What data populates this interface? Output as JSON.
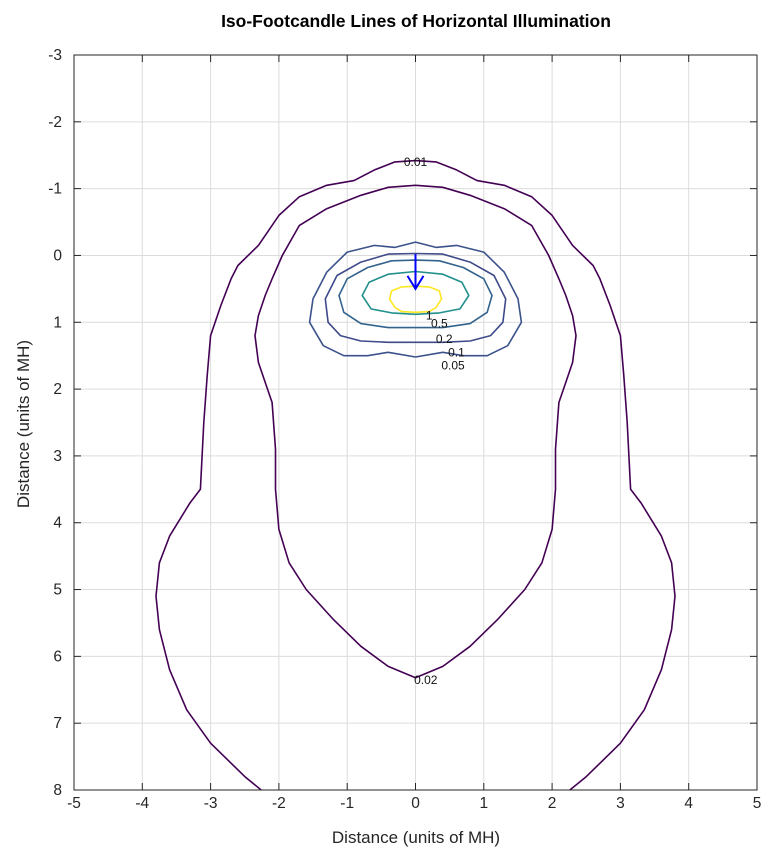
{
  "chart_data": {
    "type": "contour",
    "title": "Iso-Footcandle Lines of Horizontal Illumination",
    "xlabel": "Distance (units of MH)",
    "ylabel": "Distance (units of MH)",
    "xlim": [
      -5,
      5
    ],
    "ylim": [
      8,
      -3
    ],
    "y_axis_reversed": true,
    "grid": true,
    "xticks": [
      "-5",
      "-4",
      "-3",
      "-2",
      "-1",
      "0",
      "1",
      "2",
      "3",
      "4",
      "5"
    ],
    "yticks": [
      "-3",
      "-2",
      "-1",
      "0",
      "1",
      "2",
      "3",
      "4",
      "5",
      "6",
      "7",
      "8"
    ],
    "levels": [
      {
        "value": 0.01,
        "label": "0.01",
        "color": "#440154",
        "label_at": [
          0,
          -1.4
        ],
        "path": [
          [
            0,
            -1.42
          ],
          [
            0.3,
            -1.4
          ],
          [
            0.6,
            -1.28
          ],
          [
            0.9,
            -1.12
          ],
          [
            1.3,
            -1.05
          ],
          [
            1.7,
            -0.88
          ],
          [
            2.0,
            -0.6
          ],
          [
            2.3,
            -0.15
          ],
          [
            2.6,
            0.15
          ],
          [
            2.7,
            0.35
          ],
          [
            2.85,
            0.75
          ],
          [
            3.0,
            1.2
          ],
          [
            3.05,
            1.8
          ],
          [
            3.1,
            2.5
          ],
          [
            3.15,
            3.5
          ],
          [
            3.3,
            3.7
          ],
          [
            3.6,
            4.2
          ],
          [
            3.75,
            4.6
          ],
          [
            3.8,
            5.1
          ],
          [
            3.75,
            5.6
          ],
          [
            3.6,
            6.2
          ],
          [
            3.35,
            6.8
          ],
          [
            3.0,
            7.3
          ],
          [
            2.5,
            7.8
          ],
          [
            2.2,
            8.05
          ],
          [
            2.1,
            8.3
          ]
        ],
        "mirror": true
      },
      {
        "value": 0.02,
        "label": "0.02",
        "color": "#440154",
        "label_at": [
          0.15,
          6.35
        ],
        "path": [
          [
            0,
            6.32
          ],
          [
            0.4,
            6.15
          ],
          [
            0.8,
            5.85
          ],
          [
            1.2,
            5.45
          ],
          [
            1.6,
            5.0
          ],
          [
            1.85,
            4.6
          ],
          [
            2.0,
            4.1
          ],
          [
            2.05,
            3.5
          ],
          [
            2.05,
            2.9
          ],
          [
            2.1,
            2.2
          ],
          [
            2.2,
            1.9
          ],
          [
            2.3,
            1.6
          ],
          [
            2.35,
            1.2
          ],
          [
            2.3,
            0.9
          ],
          [
            2.2,
            0.6
          ],
          [
            2.1,
            0.35
          ],
          [
            1.95,
            0.0
          ],
          [
            1.7,
            -0.45
          ],
          [
            1.3,
            -0.7
          ],
          [
            0.8,
            -0.9
          ],
          [
            0.4,
            -1.02
          ],
          [
            0,
            -1.05
          ]
        ],
        "mirror": true
      },
      {
        "value": 0.05,
        "label": "0.05",
        "color": "#3b528b",
        "label_at": [
          0.55,
          1.65
        ],
        "path": [
          [
            0,
            1.52
          ],
          [
            0.4,
            1.45
          ],
          [
            0.7,
            1.5
          ],
          [
            1.05,
            1.5
          ],
          [
            1.35,
            1.35
          ],
          [
            1.55,
            1.0
          ],
          [
            1.5,
            0.65
          ],
          [
            1.3,
            0.25
          ],
          [
            1.0,
            -0.05
          ],
          [
            0.6,
            -0.15
          ],
          [
            0.3,
            -0.12
          ],
          [
            0,
            -0.2
          ]
        ],
        "mirror": true
      },
      {
        "value": 0.1,
        "label": "0.1",
        "color": "#3e4a89",
        "label_at": [
          0.6,
          1.45
        ],
        "path": [
          [
            0,
            1.3
          ],
          [
            0.4,
            1.3
          ],
          [
            0.8,
            1.28
          ],
          [
            1.1,
            1.2
          ],
          [
            1.28,
            1.0
          ],
          [
            1.32,
            0.65
          ],
          [
            1.15,
            0.3
          ],
          [
            0.8,
            0.1
          ],
          [
            0.4,
            -0.02
          ],
          [
            0,
            -0.03
          ]
        ],
        "mirror": true
      },
      {
        "value": 0.2,
        "label": "0.2",
        "color": "#33638d",
        "label_at": [
          0.42,
          1.25
        ],
        "path": [
          [
            0,
            1.08
          ],
          [
            0.4,
            1.08
          ],
          [
            0.8,
            1.02
          ],
          [
            1.05,
            0.85
          ],
          [
            1.12,
            0.6
          ],
          [
            1.0,
            0.35
          ],
          [
            0.7,
            0.18
          ],
          [
            0.35,
            0.08
          ],
          [
            0,
            0.07
          ]
        ],
        "mirror": true
      },
      {
        "value": 0.5,
        "label": "0.5",
        "color": "#21908d",
        "label_at": [
          0.35,
          1.02
        ],
        "path": [
          [
            0,
            0.88
          ],
          [
            0.35,
            0.86
          ],
          [
            0.65,
            0.8
          ],
          [
            0.78,
            0.6
          ],
          [
            0.68,
            0.4
          ],
          [
            0.4,
            0.28
          ],
          [
            0,
            0.24
          ]
        ],
        "mirror": true
      },
      {
        "value": 1,
        "label": "1",
        "color": "#fde725",
        "label_at": [
          0.2,
          0.9
        ],
        "path": [
          [
            0,
            0.85
          ],
          [
            0.2,
            0.84
          ],
          [
            0.3,
            0.78
          ],
          [
            0.38,
            0.65
          ],
          [
            0.35,
            0.53
          ],
          [
            0.2,
            0.47
          ],
          [
            0,
            0.46
          ]
        ],
        "mirror": true
      }
    ],
    "arrow": {
      "x": 0,
      "y_from": -0.02,
      "y_to": 0.5,
      "color": "#0000ff"
    }
  }
}
